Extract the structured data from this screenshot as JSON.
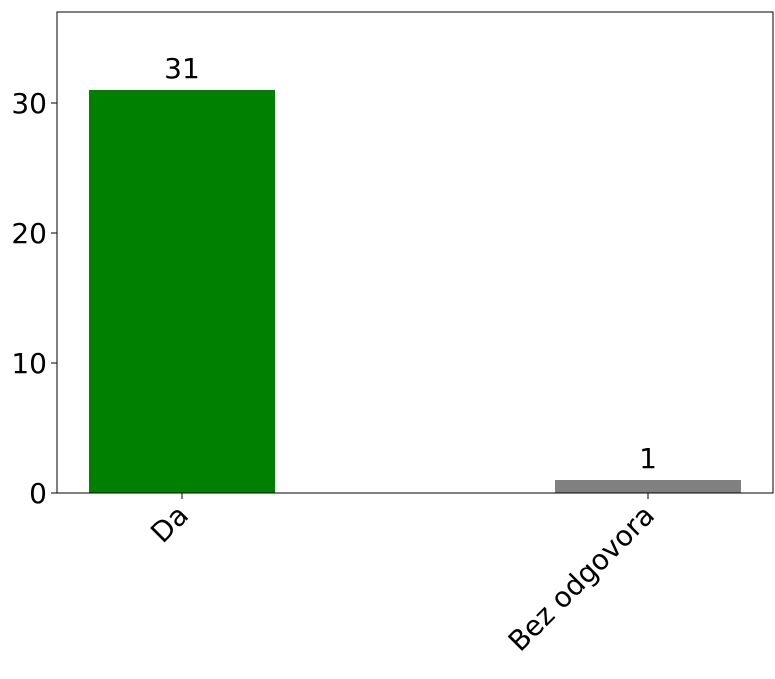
{
  "chart_data": {
    "type": "bar",
    "categories": [
      "Da",
      "Bez odgovora"
    ],
    "values": [
      31,
      1
    ],
    "colors": [
      "#008000",
      "#808080"
    ],
    "data_labels": [
      "31",
      "1"
    ],
    "y_ticks": [
      0,
      10,
      20,
      30
    ],
    "ylim": [
      0,
      37
    ],
    "title": "",
    "xlabel": "",
    "ylabel": "",
    "grid": false,
    "legend": "none"
  }
}
